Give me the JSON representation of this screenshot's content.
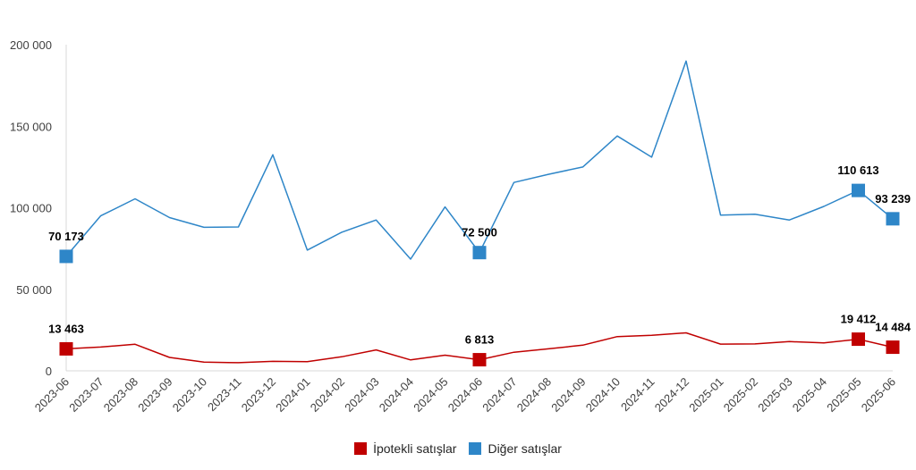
{
  "chart_data": {
    "type": "line",
    "categories": [
      "2023-06",
      "2023-07",
      "2023-08",
      "2023-09",
      "2023-10",
      "2023-11",
      "2023-12",
      "2024-01",
      "2024-02",
      "2024-03",
      "2024-04",
      "2024-05",
      "2024-06",
      "2024-07",
      "2024-08",
      "2024-09",
      "2024-10",
      "2024-11",
      "2024-12",
      "2025-01",
      "2025-02",
      "2025-03",
      "2025-04",
      "2025-05",
      "2025-06"
    ],
    "ylim": [
      0,
      200000
    ],
    "yticks": [
      0,
      50000,
      100000,
      150000,
      200000
    ],
    "ytick_labels": [
      "0",
      "50 000",
      "100 000",
      "150 000",
      "200 000"
    ],
    "grid": false,
    "legend_position": "bottom",
    "series": [
      {
        "name": "İpotekli satışlar",
        "color": "#c00000",
        "values": [
          13463,
          14600,
          16300,
          8200,
          5300,
          5000,
          5800,
          5600,
          8600,
          12800,
          6700,
          9600,
          6813,
          11400,
          13500,
          15700,
          21000,
          21800,
          23300,
          16400,
          16500,
          17900,
          17100,
          19412,
          14484
        ],
        "labels": {
          "0": "13 463",
          "12": "6 813",
          "23": "19 412",
          "24": "14 484"
        }
      },
      {
        "name": "Diğer satışlar",
        "color": "#2e86c8",
        "values": [
          70173,
          95000,
          105500,
          94000,
          88000,
          88200,
          132500,
          74000,
          85000,
          92500,
          68500,
          100500,
          72500,
          115500,
          120500,
          125000,
          144000,
          131000,
          190000,
          95500,
          96000,
          92500,
          100800,
          110613,
          93239
        ],
        "labels": {
          "0": "70 173",
          "12": "72 500",
          "23": "110 613",
          "24": "93 239"
        }
      }
    ]
  }
}
